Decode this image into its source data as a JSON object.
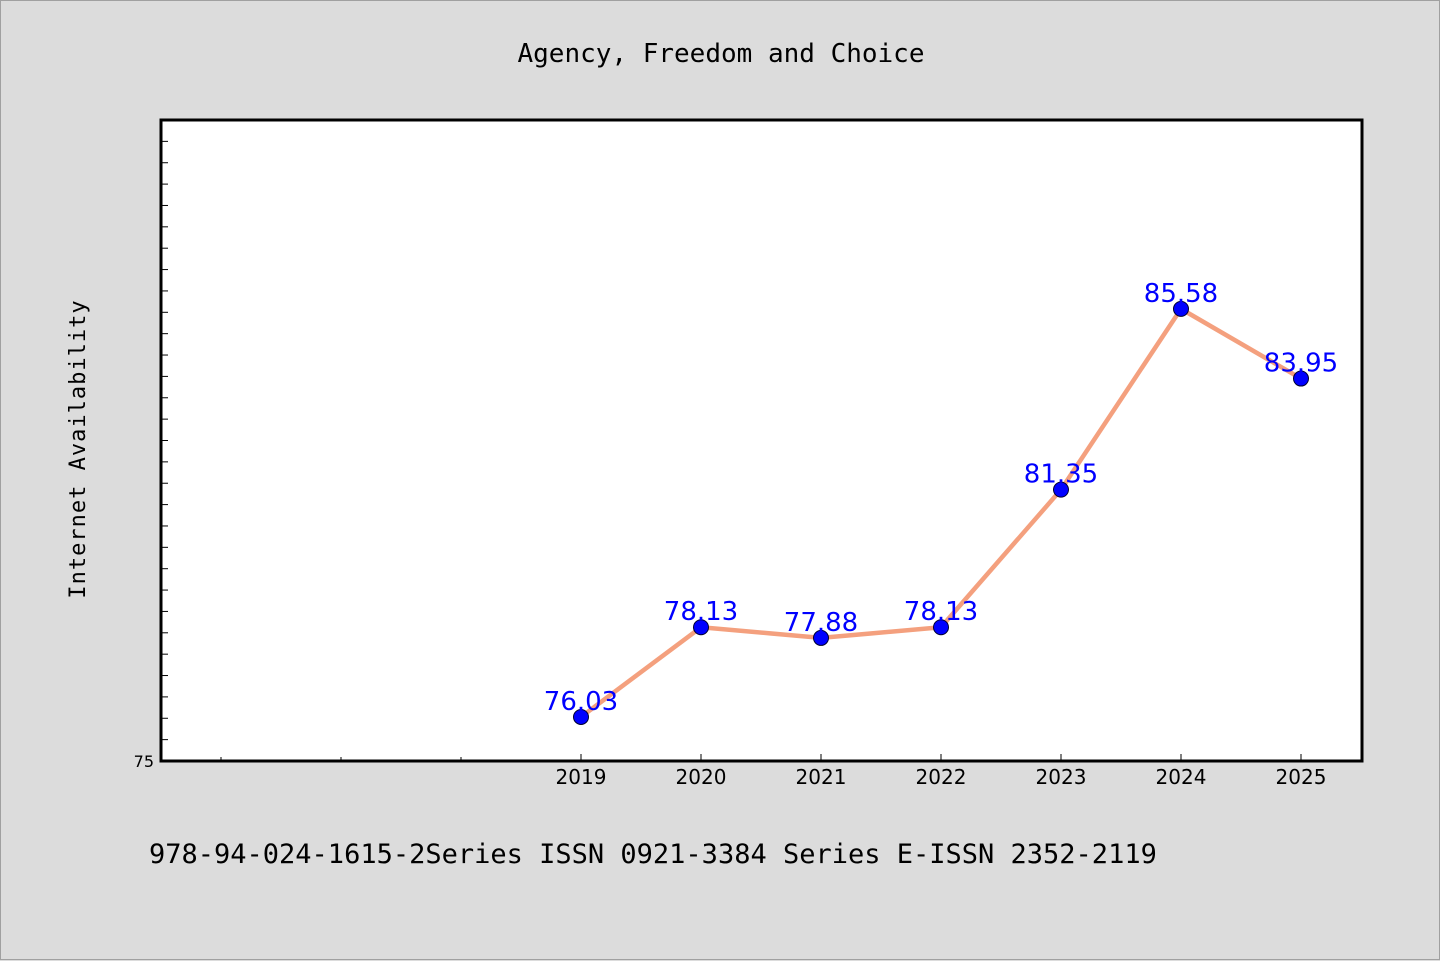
{
  "chart_data": {
    "type": "line",
    "title": "Agency, Freedom and Choice",
    "xlabel": "",
    "ylabel": "Internet Availability",
    "categories": [
      "2019",
      "2020",
      "2021",
      "2022",
      "2023",
      "2024",
      "2025"
    ],
    "series": [
      {
        "values": [
          76.03,
          78.13,
          77.88,
          78.13,
          81.35,
          85.58,
          83.95
        ],
        "labels": [
          "76.03",
          "78.13",
          "77.88",
          "78.13",
          "81.35",
          "85.58",
          "83.95"
        ]
      }
    ],
    "ylim": [
      75,
      90
    ],
    "yticks_labeled": [
      "75"
    ],
    "grid": false,
    "legend": "none",
    "colors": {
      "line": "#f4a07e",
      "marker": "#0000ff",
      "data_label": "#0000ff",
      "plot_background": "#ffffff",
      "figure_background": "#dcdcdc"
    }
  },
  "footnote": "978-94-024-1615-2Series ISSN 0921-3384 Series E-ISSN 2352-2119"
}
